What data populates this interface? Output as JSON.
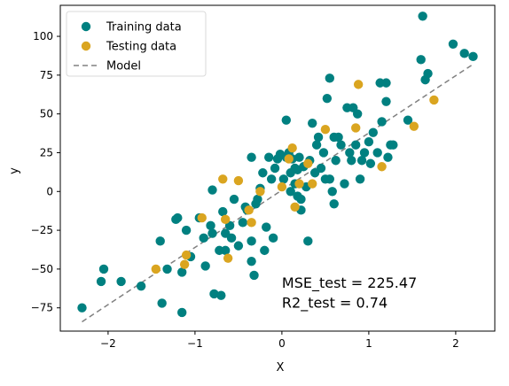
{
  "chart_data": {
    "type": "scatter",
    "xlabel": "X",
    "ylabel": "y",
    "xlim": [
      -2.55,
      2.45
    ],
    "ylim": [
      -90,
      120
    ],
    "xticks": [
      -2,
      -1,
      0,
      1,
      2
    ],
    "xtick_labels": [
      "−2",
      "−1",
      "0",
      "1",
      "2"
    ],
    "yticks": [
      -75,
      -50,
      -25,
      0,
      25,
      50,
      75,
      100
    ],
    "ytick_labels": [
      "−75",
      "−50",
      "−25",
      "0",
      "25",
      "50",
      "75",
      "100"
    ],
    "grid": false,
    "legend_position": "top-left",
    "legend": [
      {
        "label": "Training data",
        "kind": "marker",
        "color": "#008080"
      },
      {
        "label": "Testing data",
        "kind": "marker",
        "color": "#DAA520"
      },
      {
        "label": "Model",
        "kind": "dashed-line",
        "color": "#808080"
      }
    ],
    "series": [
      {
        "name": "Training data",
        "color": "#008080",
        "points": [
          [
            -2.3,
            -75
          ],
          [
            -2.05,
            -50
          ],
          [
            -2.08,
            -58
          ],
          [
            -1.85,
            -58
          ],
          [
            -1.62,
            -61
          ],
          [
            -1.4,
            -32
          ],
          [
            -1.38,
            -72
          ],
          [
            -1.32,
            -50
          ],
          [
            -1.22,
            -18
          ],
          [
            -1.2,
            -17
          ],
          [
            -1.15,
            -52
          ],
          [
            -1.15,
            -78
          ],
          [
            -1.1,
            -25
          ],
          [
            -1.05,
            -42
          ],
          [
            -0.95,
            -17
          ],
          [
            -0.9,
            -30
          ],
          [
            -0.88,
            -48
          ],
          [
            -0.82,
            -22
          ],
          [
            -0.8,
            1
          ],
          [
            -0.8,
            -27
          ],
          [
            -0.78,
            -66
          ],
          [
            -0.72,
            -38
          ],
          [
            -0.7,
            -67
          ],
          [
            -0.68,
            -13
          ],
          [
            -0.65,
            -27
          ],
          [
            -0.65,
            -38
          ],
          [
            -0.6,
            -22
          ],
          [
            -0.58,
            -30
          ],
          [
            -0.55,
            -5
          ],
          [
            -0.5,
            -35
          ],
          [
            -0.45,
            -20
          ],
          [
            -0.42,
            -10
          ],
          [
            -0.4,
            -12
          ],
          [
            -0.35,
            -45
          ],
          [
            -0.35,
            -32
          ],
          [
            -0.35,
            22
          ],
          [
            -0.32,
            -54
          ],
          [
            -0.3,
            -8
          ],
          [
            -0.28,
            -5
          ],
          [
            -0.25,
            2
          ],
          [
            -0.22,
            12
          ],
          [
            -0.2,
            -38
          ],
          [
            -0.18,
            -23
          ],
          [
            -0.15,
            22
          ],
          [
            -0.12,
            8
          ],
          [
            -0.1,
            -30
          ],
          [
            -0.08,
            15
          ],
          [
            -0.05,
            21
          ],
          [
            -0.02,
            24
          ],
          [
            0.02,
            8
          ],
          [
            0.05,
            46
          ],
          [
            0.05,
            22
          ],
          [
            0.08,
            25
          ],
          [
            0.1,
            0
          ],
          [
            0.1,
            12
          ],
          [
            0.12,
            21
          ],
          [
            0.15,
            5
          ],
          [
            0.15,
            15
          ],
          [
            0.18,
            -3
          ],
          [
            0.18,
            14
          ],
          [
            0.2,
            22
          ],
          [
            0.22,
            -5
          ],
          [
            0.22,
            -12
          ],
          [
            0.25,
            16
          ],
          [
            0.28,
            3
          ],
          [
            0.3,
            -32
          ],
          [
            0.32,
            20
          ],
          [
            0.35,
            44
          ],
          [
            0.38,
            12
          ],
          [
            0.4,
            30
          ],
          [
            0.42,
            35
          ],
          [
            0.45,
            15
          ],
          [
            0.48,
            25
          ],
          [
            0.5,
            8
          ],
          [
            0.52,
            60
          ],
          [
            0.55,
            73
          ],
          [
            0.55,
            8
          ],
          [
            0.58,
            0
          ],
          [
            0.6,
            35
          ],
          [
            0.6,
            -8
          ],
          [
            0.62,
            20
          ],
          [
            0.65,
            35
          ],
          [
            0.68,
            30
          ],
          [
            0.72,
            5
          ],
          [
            0.75,
            54
          ],
          [
            0.78,
            25
          ],
          [
            0.8,
            20
          ],
          [
            0.82,
            54
          ],
          [
            0.85,
            30
          ],
          [
            0.87,
            50
          ],
          [
            0.9,
            8
          ],
          [
            0.92,
            20
          ],
          [
            0.95,
            25
          ],
          [
            1.0,
            32
          ],
          [
            1.02,
            18
          ],
          [
            1.05,
            38
          ],
          [
            1.1,
            25
          ],
          [
            1.13,
            70
          ],
          [
            1.15,
            45
          ],
          [
            1.2,
            70
          ],
          [
            1.2,
            58
          ],
          [
            1.22,
            22
          ],
          [
            1.25,
            30
          ],
          [
            1.28,
            30
          ],
          [
            1.45,
            46
          ],
          [
            1.6,
            85
          ],
          [
            1.62,
            113
          ],
          [
            1.65,
            72
          ],
          [
            1.68,
            76
          ],
          [
            1.97,
            95
          ],
          [
            2.1,
            89
          ],
          [
            2.2,
            87
          ]
        ]
      },
      {
        "name": "Testing data",
        "color": "#DAA520",
        "points": [
          [
            -1.45,
            -50
          ],
          [
            -1.12,
            -47
          ],
          [
            -1.1,
            -41
          ],
          [
            -0.92,
            -17
          ],
          [
            -0.68,
            8
          ],
          [
            -0.65,
            -18
          ],
          [
            -0.62,
            -43
          ],
          [
            -0.5,
            7
          ],
          [
            -0.38,
            -12
          ],
          [
            -0.35,
            -20
          ],
          [
            -0.25,
            0
          ],
          [
            0.0,
            3
          ],
          [
            0.08,
            21
          ],
          [
            0.12,
            28
          ],
          [
            0.15,
            -10
          ],
          [
            0.2,
            5
          ],
          [
            0.3,
            18
          ],
          [
            0.35,
            5
          ],
          [
            0.5,
            40
          ],
          [
            0.85,
            41
          ],
          [
            0.88,
            69
          ],
          [
            1.15,
            16
          ],
          [
            1.52,
            42
          ],
          [
            1.75,
            59
          ]
        ]
      }
    ],
    "model_line": {
      "name": "Model",
      "color": "#808080",
      "x": [
        -2.3,
        2.2
      ],
      "y": [
        -84,
        82
      ]
    },
    "annotations": [
      {
        "text": "MSE_test = 225.47",
        "x": 0.0,
        "y": -62
      },
      {
        "text": "R2_test = 0.74",
        "x": 0.0,
        "y": -75
      }
    ]
  }
}
